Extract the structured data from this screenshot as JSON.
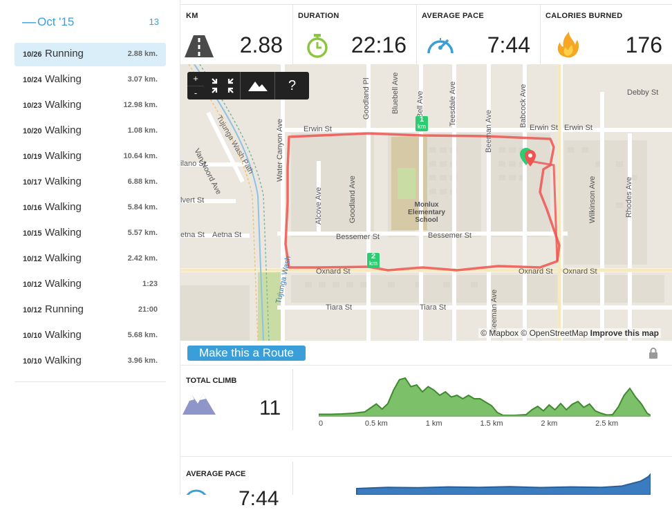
{
  "sidebar": {
    "month": {
      "toggle": "—",
      "label": "Oct '15",
      "count": "13"
    },
    "activities": [
      {
        "date": "10/26",
        "type": "Running",
        "value": "2.88 km."
      },
      {
        "date": "10/24",
        "type": "Walking",
        "value": "3.07 km."
      },
      {
        "date": "10/23",
        "type": "Walking",
        "value": "12.98 km."
      },
      {
        "date": "10/20",
        "type": "Walking",
        "value": "1.08 km."
      },
      {
        "date": "10/19",
        "type": "Walking",
        "value": "10.64 km."
      },
      {
        "date": "10/17",
        "type": "Walking",
        "value": "6.88 km."
      },
      {
        "date": "10/16",
        "type": "Walking",
        "value": "5.84 km."
      },
      {
        "date": "10/15",
        "type": "Walking",
        "value": "5.57 km."
      },
      {
        "date": "10/12",
        "type": "Walking",
        "value": "2.42 km."
      },
      {
        "date": "10/12",
        "type": "Walking",
        "value": "1:23"
      },
      {
        "date": "10/12",
        "type": "Running",
        "value": "21:00"
      },
      {
        "date": "10/10",
        "type": "Walking",
        "value": "5.68 km."
      },
      {
        "date": "10/10",
        "type": "Walking",
        "value": "3.96 km."
      }
    ]
  },
  "stats": {
    "km": {
      "label": "KM",
      "value": "2.88",
      "icon": "road-icon"
    },
    "duration": {
      "label": "DURATION",
      "value": "22:16",
      "icon": "stopwatch-icon"
    },
    "pace": {
      "label": "AVERAGE PACE",
      "value": "7:44",
      "icon": "speedometer-icon"
    },
    "calories": {
      "label": "CALORIES BURNED",
      "value": "176",
      "icon": "flame-icon"
    }
  },
  "map": {
    "controls": {
      "zoom_in": "+",
      "zoom_out": "-",
      "help": "?"
    },
    "streets": {
      "erwin_1": "Erwin St",
      "erwin_2": "Erwin St",
      "erwin_3": "Erwin St",
      "bessemer_1": "Bessemer St",
      "bessemer_2": "Bessemer St",
      "oxnard_1": "Oxnard St",
      "oxnard_2": "Oxnard St",
      "oxnard_3": "Oxnard St",
      "tiara_1": "Tiara St",
      "tiara_2": "Tiara St",
      "aetna": "Aetna St",
      "aetna_left": "etna St",
      "dilano": "ilano St",
      "delvert": "lvert St",
      "debby": "Debby St",
      "van_noord": "Van Noord Ave",
      "water_canyon": "Water Canyon Ave",
      "alcove": "Alcove Ave",
      "goodland_1": "Goodland Ave",
      "goodland_2": "Goodland Pl",
      "bluebell": "Bluebell Ave",
      "bell": "Bell Ave",
      "teesdale": "Teesdale Ave",
      "beeman_1": "Beeman Ave",
      "beeman_2": "Beeman Ave",
      "babcock": "Babcock Ave",
      "wilkinson": "Wilkinson Ave",
      "rhodes": "Rhodes Ave",
      "tujunga_path": "Tujunga Wash Path",
      "tujunga_wash": "Tujunga Wash",
      "school": "Monlux Elementary School"
    },
    "markers": {
      "km1": "1",
      "km1_unit": "km",
      "km2": "2",
      "km2_unit": "km"
    },
    "attribution": {
      "mapbox": "© Mapbox",
      "osm": "© OpenStreetMap",
      "improve": "Improve this map"
    },
    "colors": {
      "route": "#ef5350",
      "marker": "#2ecc71",
      "park": "#c8dca4"
    }
  },
  "route_button": "Make this a Route",
  "climb": {
    "label": "TOTAL CLIMB",
    "value": "11",
    "ticks": [
      "0",
      "0.5 km",
      "1 km",
      "1.5 km",
      "2 km",
      "2.5 km"
    ]
  },
  "pace_panel": {
    "label": "AVERAGE PACE",
    "value": "7:44"
  },
  "chart_data": [
    {
      "type": "area",
      "title": "TOTAL CLIMB",
      "xlabel": "",
      "ylabel": "",
      "xlim": [
        0,
        2.88
      ],
      "x": [
        0,
        0.1,
        0.2,
        0.3,
        0.4,
        0.5,
        0.55,
        0.6,
        0.65,
        0.7,
        0.75,
        0.8,
        0.85,
        0.9,
        0.95,
        1.0,
        1.05,
        1.1,
        1.15,
        1.2,
        1.25,
        1.3,
        1.35,
        1.4,
        1.5,
        1.55,
        1.6,
        1.7,
        1.8,
        1.85,
        1.9,
        1.95,
        2.0,
        2.05,
        2.1,
        2.15,
        2.2,
        2.25,
        2.3,
        2.35,
        2.4,
        2.45,
        2.5,
        2.55,
        2.6,
        2.65,
        2.7,
        2.75,
        2.8,
        2.85,
        2.88
      ],
      "y": [
        0.5,
        0.5,
        0.6,
        0.8,
        1.2,
        3.5,
        2.0,
        3.6,
        7.5,
        10.5,
        11.0,
        8.5,
        9.0,
        7.0,
        8.5,
        7.5,
        6.0,
        7.0,
        5.5,
        6.0,
        5.0,
        6.0,
        5.0,
        5.0,
        3.0,
        1.0,
        0.2,
        0.2,
        0.4,
        1.8,
        2.8,
        1.5,
        3.2,
        1.8,
        3.6,
        1.8,
        3.4,
        4.2,
        2.5,
        3.5,
        1.5,
        0.8,
        0.3,
        0.4,
        2.6,
        6.0,
        8.0,
        5.5,
        3.5,
        0.8,
        0.2
      ],
      "ylim": [
        0,
        12
      ],
      "grid": false,
      "color": "#6ab84f"
    },
    {
      "type": "area",
      "title": "AVERAGE PACE",
      "xlim": [
        0,
        2.88
      ],
      "x": [
        0,
        0.3,
        0.6,
        0.9,
        1.2,
        1.5,
        1.8,
        2.1,
        2.4,
        2.6,
        2.7,
        2.78,
        2.82,
        2.86,
        2.88
      ],
      "y": [
        3,
        3.6,
        3.4,
        3.8,
        3.6,
        3.9,
        3.5,
        3.8,
        3.6,
        4.2,
        5.5,
        6.5,
        7.6,
        8.8,
        10.0
      ],
      "ylim": [
        0,
        12
      ],
      "grid": false,
      "color": "#2f6fb0"
    }
  ]
}
